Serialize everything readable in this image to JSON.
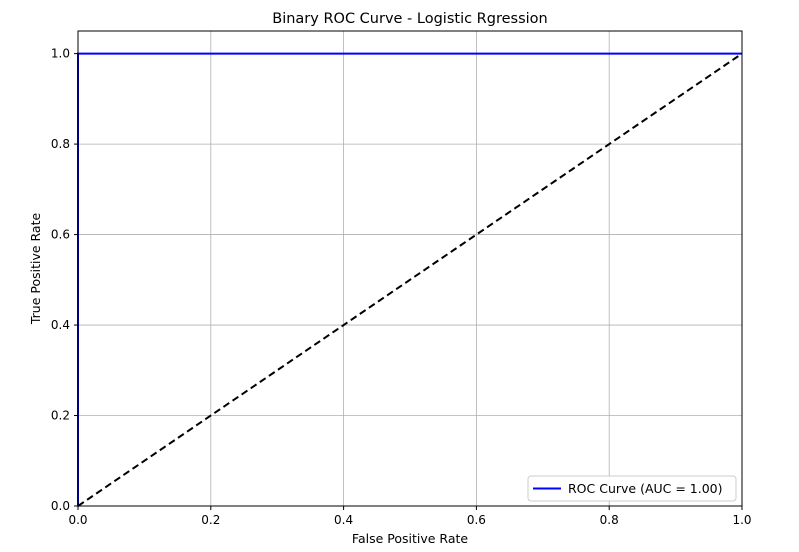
{
  "chart_data": {
    "type": "line",
    "title": "Binary ROC Curve - Logistic Rgression",
    "xlabel": "False Positive Rate",
    "ylabel": "True Positive Rate",
    "xlim": [
      0.0,
      1.0
    ],
    "ylim": [
      0.0,
      1.05
    ],
    "xticks": [
      "0.0",
      "0.2",
      "0.4",
      "0.6",
      "0.8",
      "1.0"
    ],
    "yticks": [
      "0.0",
      "0.2",
      "0.4",
      "0.6",
      "0.8",
      "1.0"
    ],
    "grid": true,
    "legend_position": "lower-right",
    "series": [
      {
        "name": "ROC Curve (AUC = 1.00)",
        "color": "#0000ff",
        "style": "solid",
        "x": [
          0.0,
          0.0,
          1.0
        ],
        "y": [
          0.0,
          1.0,
          1.0
        ]
      },
      {
        "color": "#000000",
        "style": "dashed",
        "x": [
          0.0,
          1.0
        ],
        "y": [
          0.0,
          1.0
        ]
      }
    ]
  }
}
